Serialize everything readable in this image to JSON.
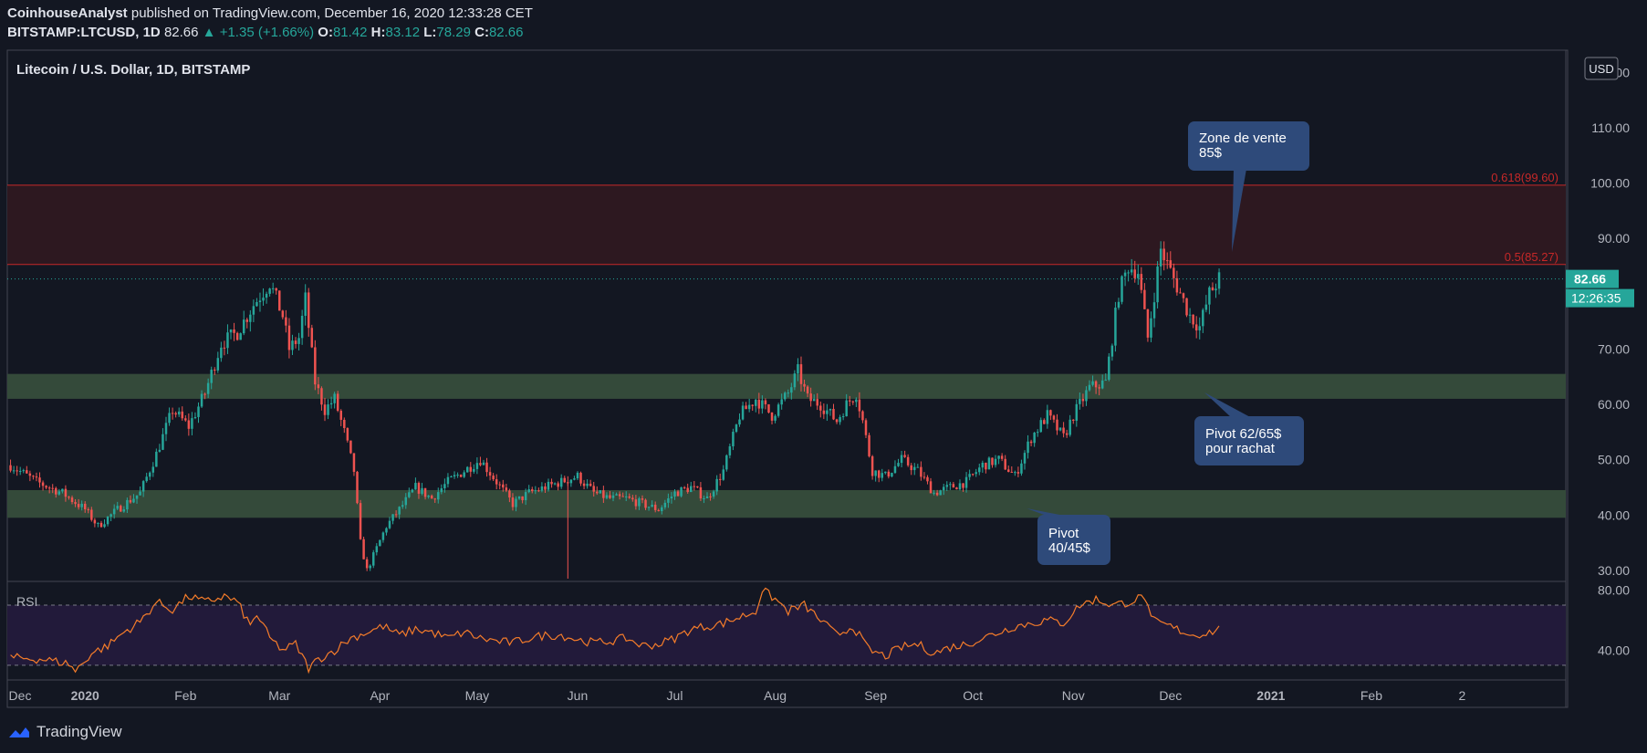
{
  "header": {
    "author": "CoinhouseAnalyst",
    "published": "published on TradingView.com, December 16, 2020 12:33:28 CET",
    "symbol": "BITSTAMP:LTCUSD, 1D",
    "last": "82.66",
    "change": "+1.35 (+1.66%)",
    "open_label": "O:",
    "open": "81.42",
    "high_label": "H:",
    "high": "83.12",
    "low_label": "L:",
    "low": "78.29",
    "close_label": "C:",
    "close": "82.66"
  },
  "chart_title": "Litecoin / U.S. Dollar, 1D, BITSTAMP",
  "currency_badge": "USD",
  "last_price_label": "82.66",
  "countdown_label": "12:26:35",
  "rsi_label": "RSI",
  "footer_brand": "TradingView",
  "colors": {
    "bg": "#131722",
    "up": "#26a69a",
    "down": "#ef5350",
    "zone_red": "#2d1820",
    "zone_green": "#344a3a",
    "rsi_line": "#f57c2a",
    "rsi_bg": "#221a3a",
    "callout": "#2e4a7a"
  },
  "chart_data": {
    "type": "candlestick",
    "title": "Litecoin / U.S. Dollar, 1D, BITSTAMP",
    "ylim": [
      28,
      124
    ],
    "y_ticks": [
      "120.00",
      "110.00",
      "100.00",
      "90.00",
      "80.00",
      "70.00",
      "60.00",
      "50.00",
      "40.00",
      "30.00"
    ],
    "y_tick_values": [
      120,
      110,
      100,
      90,
      80,
      70,
      60,
      50,
      40,
      30
    ],
    "x_ticks": [
      "Dec",
      "2020",
      "Feb",
      "Mar",
      "Apr",
      "May",
      "Jun",
      "Jul",
      "Aug",
      "Sep",
      "Oct",
      "Nov",
      "Dec",
      "2021",
      "Feb",
      "2"
    ],
    "x_tick_index": [
      0,
      23,
      54,
      83,
      114,
      144,
      175,
      205,
      236,
      267,
      297,
      328,
      358,
      389,
      420,
      448
    ],
    "x_range": [
      -1,
      480
    ],
    "fib_levels": [
      {
        "label": "0.618(99.60)",
        "value": 99.6
      },
      {
        "label": "0.5(85.27)",
        "value": 85.27
      }
    ],
    "zones": [
      {
        "name": "sell",
        "from": 85.27,
        "to": 99.6
      },
      {
        "name": "pivot-62-65",
        "from": 61,
        "to": 65.5
      },
      {
        "name": "pivot-40-45",
        "from": 39.5,
        "to": 44.5
      }
    ],
    "close_path": [
      [
        0,
        49
      ],
      [
        8,
        46
      ],
      [
        16,
        44
      ],
      [
        23,
        41
      ],
      [
        27,
        38
      ],
      [
        33,
        41
      ],
      [
        40,
        44
      ],
      [
        45,
        51
      ],
      [
        50,
        59
      ],
      [
        55,
        56
      ],
      [
        60,
        62
      ],
      [
        65,
        71
      ],
      [
        70,
        73
      ],
      [
        75,
        78
      ],
      [
        80,
        82
      ],
      [
        84,
        76
      ],
      [
        86,
        70
      ],
      [
        89,
        72
      ],
      [
        91,
        79
      ],
      [
        94,
        64
      ],
      [
        97,
        59
      ],
      [
        100,
        61
      ],
      [
        103,
        55
      ],
      [
        106,
        48
      ],
      [
        108,
        35
      ],
      [
        110,
        30
      ],
      [
        113,
        34
      ],
      [
        116,
        38
      ],
      [
        120,
        41
      ],
      [
        125,
        45
      ],
      [
        130,
        43
      ],
      [
        135,
        46
      ],
      [
        140,
        48
      ],
      [
        145,
        50
      ],
      [
        150,
        46
      ],
      [
        155,
        42
      ],
      [
        160,
        44
      ],
      [
        165,
        45
      ],
      [
        170,
        46
      ],
      [
        175,
        47
      ],
      [
        180,
        44
      ],
      [
        185,
        43
      ],
      [
        190,
        43
      ],
      [
        195,
        42
      ],
      [
        200,
        41
      ],
      [
        205,
        44
      ],
      [
        210,
        45
      ],
      [
        215,
        43
      ],
      [
        220,
        48
      ],
      [
        225,
        58
      ],
      [
        230,
        61
      ],
      [
        235,
        58
      ],
      [
        240,
        62
      ],
      [
        243,
        66
      ],
      [
        246,
        61
      ],
      [
        250,
        60
      ],
      [
        255,
        57
      ],
      [
        258,
        60
      ],
      [
        261,
        62
      ],
      [
        263,
        57
      ],
      [
        266,
        48
      ],
      [
        270,
        47
      ],
      [
        275,
        50
      ],
      [
        280,
        48
      ],
      [
        285,
        44
      ],
      [
        290,
        45
      ],
      [
        295,
        46
      ],
      [
        300,
        49
      ],
      [
        305,
        50
      ],
      [
        310,
        47
      ],
      [
        315,
        54
      ],
      [
        320,
        58
      ],
      [
        325,
        54
      ],
      [
        328,
        58
      ],
      [
        333,
        63
      ],
      [
        338,
        64
      ],
      [
        342,
        80
      ],
      [
        345,
        85
      ],
      [
        348,
        84
      ],
      [
        351,
        72
      ],
      [
        353,
        80
      ],
      [
        355,
        88
      ],
      [
        358,
        84
      ],
      [
        361,
        80
      ],
      [
        364,
        76
      ],
      [
        367,
        74
      ],
      [
        370,
        80
      ],
      [
        373,
        82.66
      ]
    ],
    "rsi": {
      "levels": [
        70,
        30
      ],
      "ticks": [
        "80.00",
        "40.00"
      ],
      "ylim": [
        22,
        84
      ],
      "path": [
        [
          0,
          35
        ],
        [
          10,
          34
        ],
        [
          18,
          31
        ],
        [
          20,
          26
        ],
        [
          25,
          38
        ],
        [
          30,
          43
        ],
        [
          35,
          52
        ],
        [
          40,
          59
        ],
        [
          45,
          72
        ],
        [
          50,
          67
        ],
        [
          55,
          76
        ],
        [
          60,
          72
        ],
        [
          66,
          76
        ],
        [
          70,
          72
        ],
        [
          74,
          56
        ],
        [
          76,
          64
        ],
        [
          80,
          48
        ],
        [
          84,
          40
        ],
        [
          88,
          44
        ],
        [
          92,
          28
        ],
        [
          95,
          34
        ],
        [
          100,
          40
        ],
        [
          105,
          48
        ],
        [
          110,
          52
        ],
        [
          115,
          56
        ],
        [
          120,
          50
        ],
        [
          125,
          54
        ],
        [
          130,
          52
        ],
        [
          135,
          48
        ],
        [
          140,
          52
        ],
        [
          145,
          48
        ],
        [
          150,
          46
        ],
        [
          155,
          45
        ],
        [
          160,
          48
        ],
        [
          165,
          50
        ],
        [
          170,
          50
        ],
        [
          175,
          47
        ],
        [
          180,
          45
        ],
        [
          185,
          46
        ],
        [
          190,
          48
        ],
        [
          195,
          43
        ],
        [
          200,
          44
        ],
        [
          205,
          48
        ],
        [
          210,
          54
        ],
        [
          215,
          56
        ],
        [
          220,
          58
        ],
        [
          225,
          62
        ],
        [
          230,
          66
        ],
        [
          232,
          80
        ],
        [
          236,
          74
        ],
        [
          240,
          66
        ],
        [
          245,
          70
        ],
        [
          250,
          60
        ],
        [
          255,
          50
        ],
        [
          260,
          56
        ],
        [
          265,
          40
        ],
        [
          270,
          36
        ],
        [
          275,
          42
        ],
        [
          280,
          44
        ],
        [
          285,
          38
        ],
        [
          290,
          42
        ],
        [
          295,
          44
        ],
        [
          300,
          48
        ],
        [
          305,
          52
        ],
        [
          310,
          56
        ],
        [
          315,
          58
        ],
        [
          320,
          60
        ],
        [
          325,
          58
        ],
        [
          330,
          70
        ],
        [
          335,
          74
        ],
        [
          340,
          70
        ],
        [
          345,
          72
        ],
        [
          350,
          76
        ],
        [
          352,
          60
        ],
        [
          355,
          58
        ],
        [
          360,
          54
        ],
        [
          365,
          50
        ],
        [
          370,
          52
        ],
        [
          373,
          54
        ]
      ]
    },
    "annotations": [
      "Zone de vente 85$",
      "Pivot 62/65$ pour rachat",
      "Pivot 40/45$"
    ]
  },
  "callouts": {
    "sell_line1": "Zone de vente",
    "sell_line2": "85$",
    "pivot62_line1": "Pivot 62/65$",
    "pivot62_line2": "pour rachat",
    "pivot40_line1": "Pivot",
    "pivot40_line2": "40/45$"
  }
}
